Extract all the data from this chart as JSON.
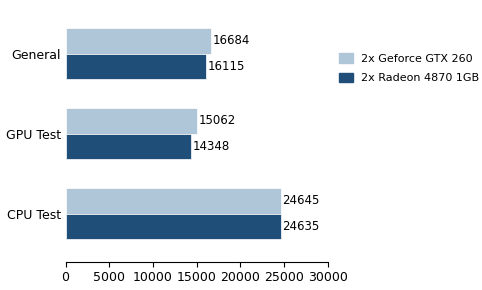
{
  "categories": [
    "CPU Test",
    "GPU Test",
    "General"
  ],
  "series": [
    {
      "label": "2x Geforce GTX 260",
      "values": [
        24645,
        15062,
        16684
      ],
      "color": "#aec6d8"
    },
    {
      "label": "2x Radeon 4870 1GB",
      "values": [
        24635,
        14348,
        16115
      ],
      "color": "#1f4e79"
    }
  ],
  "xlim": [
    0,
    30000
  ],
  "xticks": [
    0,
    5000,
    10000,
    15000,
    20000,
    25000,
    30000
  ],
  "bar_height": 0.32,
  "background_color": "#ffffff",
  "font_size": 9,
  "label_font_size": 8.5
}
